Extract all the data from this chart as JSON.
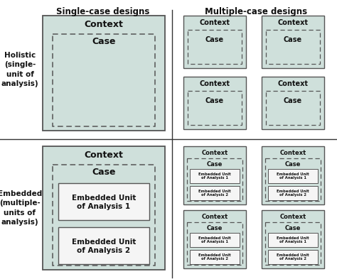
{
  "title_left": "Single-case designs",
  "title_right": "Multiple-case designs",
  "row_label_top": "Holistic\n(single-\nunit of\nanalysis)",
  "row_label_bottom": "Embedded\n(multiple-\nunits of\nanalysis)",
  "context_color": "#cfe0db",
  "context_border_color": "#555555",
  "case_dash_color": "#555555",
  "embedded_unit_color": "#f5f5f5",
  "embedded_unit_border": "#555555",
  "divider_color": "#333333",
  "text_color": "#111111",
  "bg_color": "#ffffff",
  "figsize": [
    4.74,
    3.93
  ],
  "dpi": 100
}
